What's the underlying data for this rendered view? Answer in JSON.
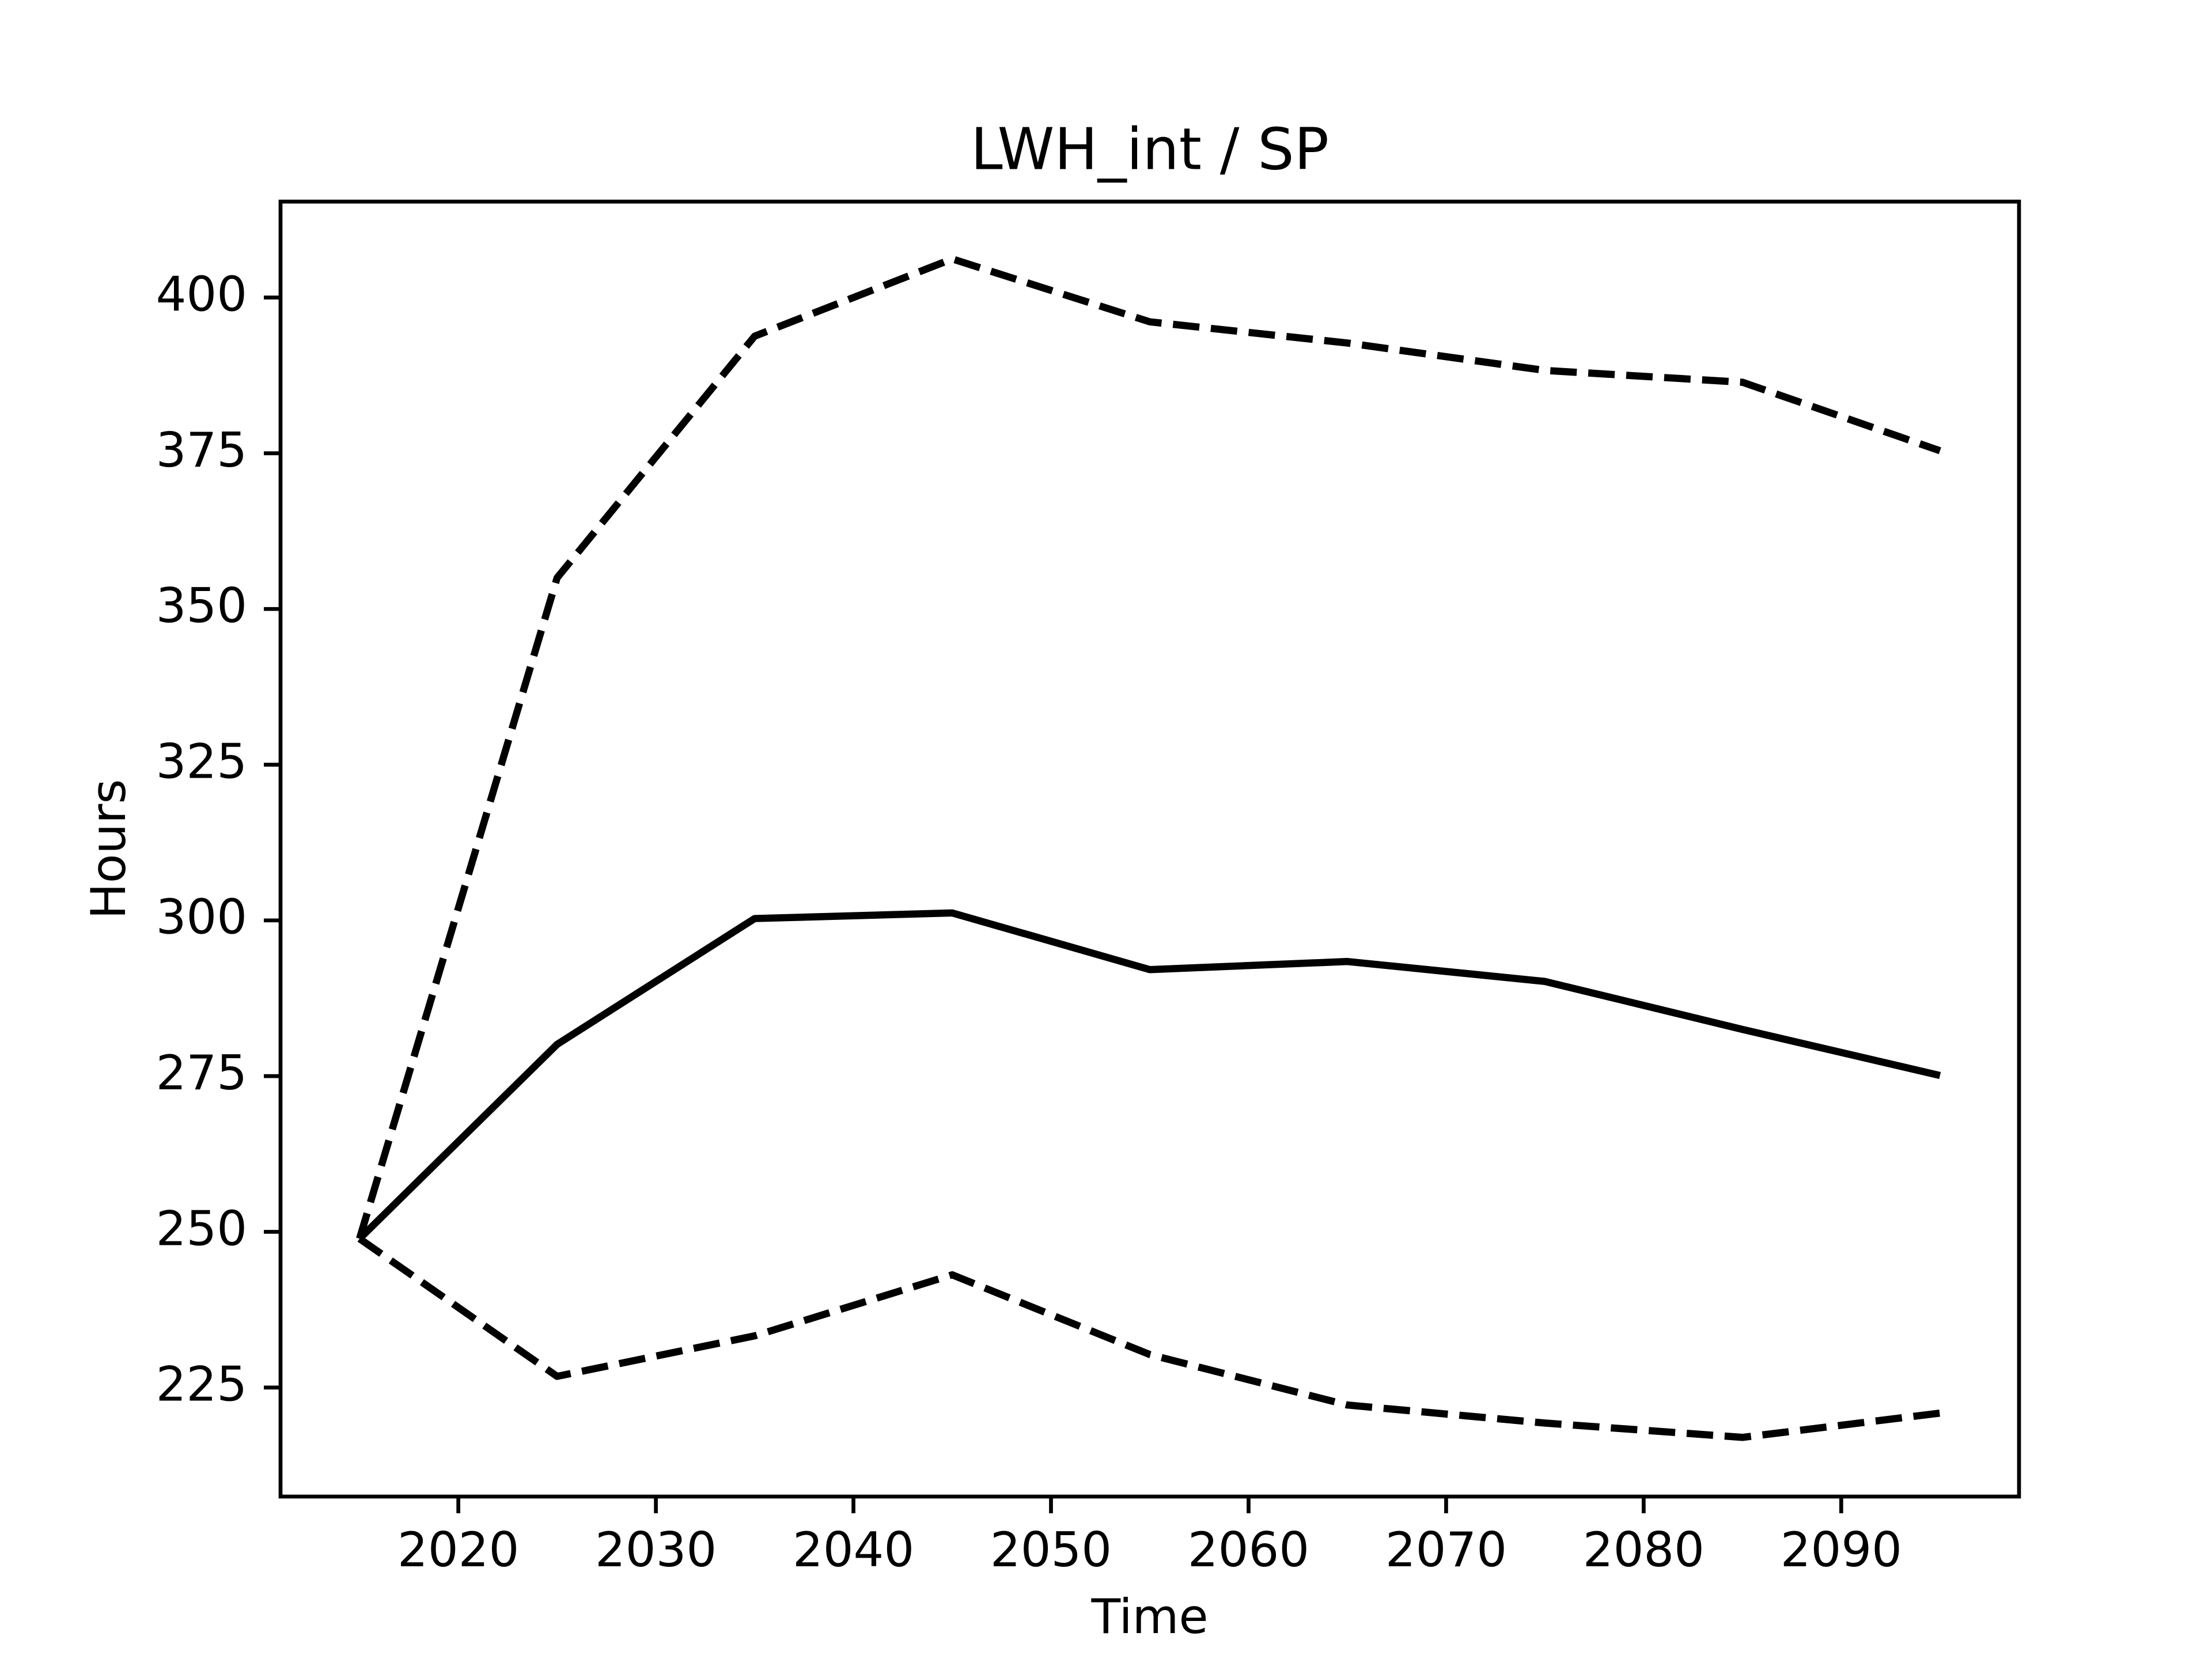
{
  "chart_data": {
    "type": "line",
    "title": "LWH_int / SP",
    "x_label": "Time",
    "y_label": "Hours",
    "x": [
      2015,
      2025,
      2035,
      2045,
      2055,
      2065,
      2075,
      2085,
      2095
    ],
    "series": [
      {
        "color": "#000000",
        "linestyle": "solid",
        "values": [
          248.9,
          280.1,
          300.3,
          301.2,
          292.1,
          293.4,
          290.2,
          282.5,
          275.1
        ]
      },
      {
        "color": "#000000",
        "linestyle": "dashed",
        "values": [
          248.9,
          355.0,
          393.8,
          406.2,
          396.1,
          392.7,
          388.3,
          386.4,
          375.4
        ]
      },
      {
        "color": "#000000",
        "linestyle": "dashed",
        "values": [
          248.9,
          226.8,
          233.3,
          243.1,
          230.3,
          222.2,
          219.3,
          217.0,
          220.9
        ]
      }
    ],
    "xlim": [
      2011,
      2099
    ],
    "xticks": [
      2020,
      2030,
      2040,
      2050,
      2060,
      2070,
      2080,
      2090
    ],
    "ylim": [
      207.5,
      415.4
    ],
    "yticks": [
      225,
      250,
      275,
      300,
      325,
      350,
      375,
      400
    ],
    "grid": false
  }
}
